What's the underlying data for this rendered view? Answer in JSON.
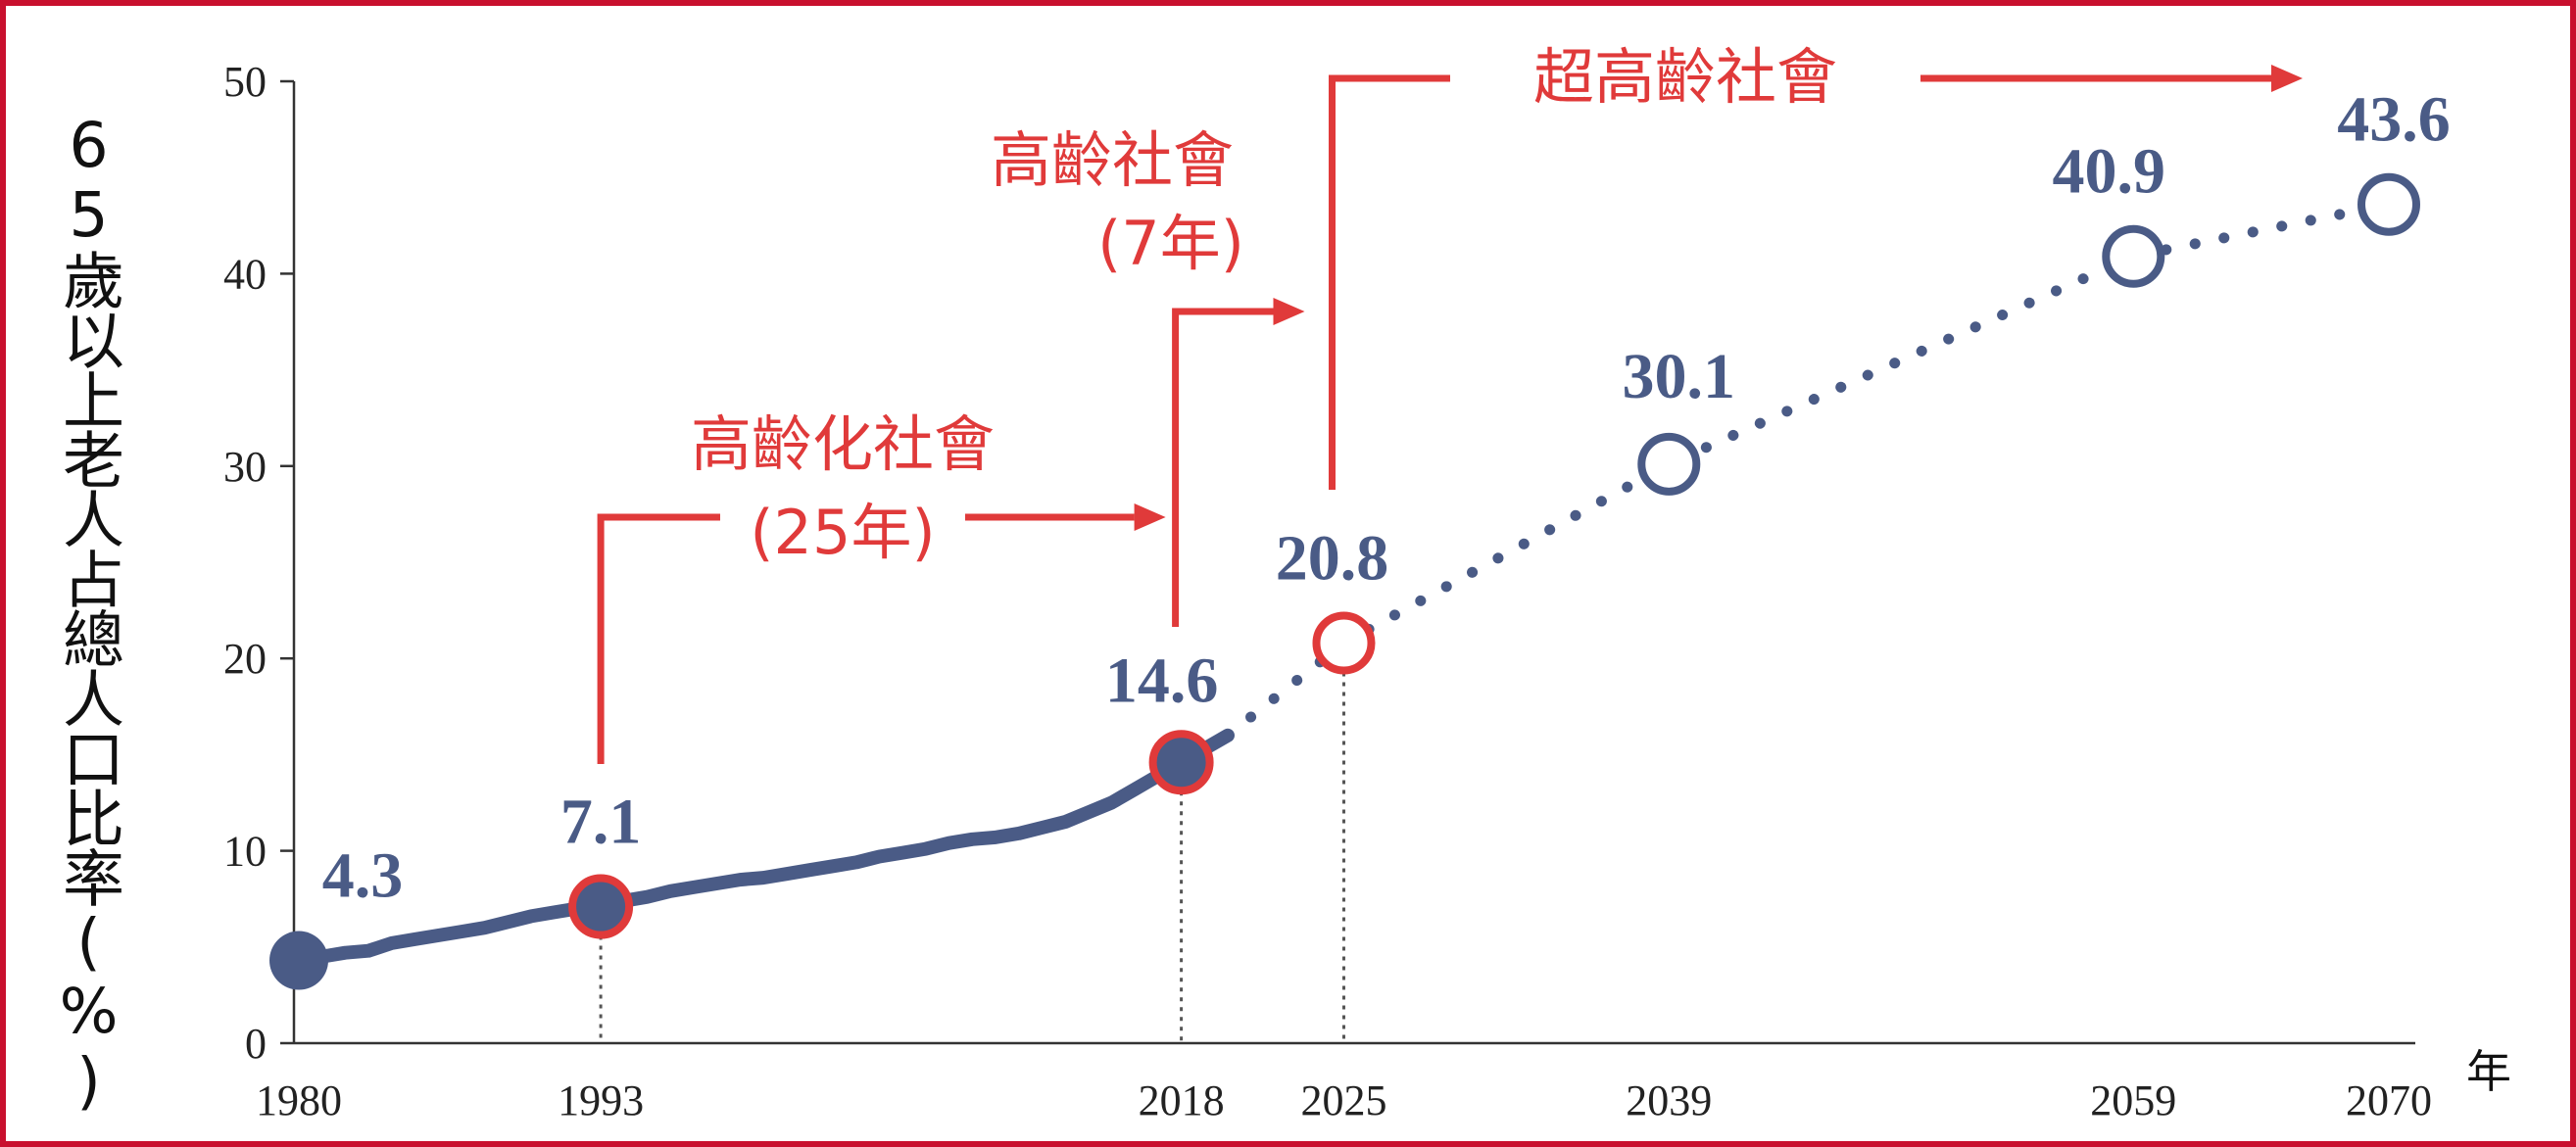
{
  "chart_data": {
    "type": "line",
    "ylabel": "65歲以上老人占總人口比率(%)",
    "xunit": "年",
    "ylim": [
      0,
      50
    ],
    "yticks": [
      0,
      10,
      20,
      30,
      40,
      50
    ],
    "grid": false,
    "marked_years": [
      1980,
      1993,
      2018,
      2025,
      2039,
      2059,
      2070
    ],
    "series": [
      {
        "style": "solid",
        "color": "#4a5b86",
        "x": [
          1980,
          1981,
          1982,
          1983,
          1984,
          1985,
          1986,
          1987,
          1988,
          1989,
          1990,
          1991,
          1992,
          1993,
          1994,
          1995,
          1996,
          1997,
          1998,
          1999,
          2000,
          2001,
          2002,
          2003,
          2004,
          2005,
          2006,
          2007,
          2008,
          2009,
          2010,
          2011,
          2012,
          2013,
          2014,
          2015,
          2016,
          2017,
          2018,
          2019,
          2020
        ],
        "y": [
          4.3,
          4.5,
          4.7,
          4.8,
          5.2,
          5.4,
          5.6,
          5.8,
          6.0,
          6.3,
          6.6,
          6.8,
          7.0,
          7.1,
          7.4,
          7.6,
          7.9,
          8.1,
          8.3,
          8.5,
          8.6,
          8.8,
          9.0,
          9.2,
          9.4,
          9.7,
          9.9,
          10.1,
          10.4,
          10.6,
          10.7,
          10.9,
          11.2,
          11.5,
          12.0,
          12.5,
          13.2,
          13.9,
          14.6,
          15.3,
          16.0
        ]
      },
      {
        "style": "dotted",
        "color": "#4a5b86",
        "x": [
          2020,
          2025,
          2039,
          2059,
          2070
        ],
        "y": [
          16.0,
          20.8,
          30.1,
          40.9,
          43.6
        ]
      }
    ],
    "points": [
      {
        "year": 1980,
        "value": 4.3,
        "label": "4.3",
        "marker": "filled"
      },
      {
        "year": 1993,
        "value": 7.1,
        "label": "7.1",
        "marker": "filled-red-ring"
      },
      {
        "year": 2018,
        "value": 14.6,
        "label": "14.6",
        "marker": "filled-red-ring"
      },
      {
        "year": 2025,
        "value": 20.8,
        "label": "20.8",
        "marker": "open-red"
      },
      {
        "year": 2039,
        "value": 30.1,
        "label": "30.1",
        "marker": "open"
      },
      {
        "year": 2059,
        "value": 40.9,
        "label": "40.9",
        "marker": "open"
      },
      {
        "year": 2070,
        "value": 43.6,
        "label": "43.6",
        "marker": "open"
      }
    ],
    "annotations": [
      {
        "from": 1993,
        "to": 2018,
        "line1": "高齡化社會",
        "line2": "(25年)"
      },
      {
        "from": 2018,
        "to": 2025,
        "line1": "高齡社會",
        "line2": "(7年)"
      },
      {
        "from": 2025,
        "to": 2070,
        "line1": "超高齡社會",
        "line2": ""
      }
    ],
    "colors": {
      "marker": "#4a5b86",
      "accent": "#e03a3a",
      "border": "#c8102e"
    }
  }
}
